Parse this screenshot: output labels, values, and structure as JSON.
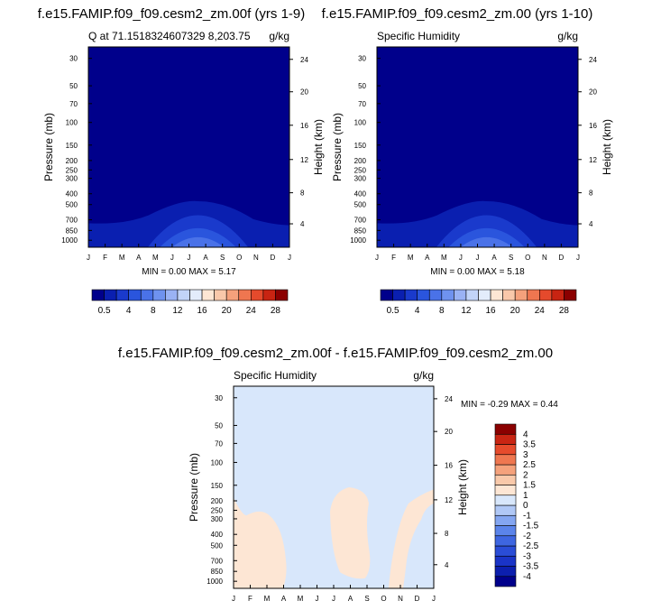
{
  "colors": {
    "abs": [
      "#00008b",
      "#0a1fb0",
      "#1a3acc",
      "#2a55dd",
      "#4a72e8",
      "#6f92ef",
      "#9ab2f4",
      "#c2d4f8",
      "#e3ecfb",
      "#fde6d4",
      "#f9c8aa",
      "#f5a17c",
      "#ef7650",
      "#e54a2c",
      "#c82412",
      "#8b0000"
    ],
    "diff": [
      "#00008b",
      "#0c1fae",
      "#1a34c7",
      "#2a4dd7",
      "#3e66e1",
      "#5b84ea",
      "#84a6f1",
      "#b0c8f6",
      "#d8e7fb",
      "#fde6d4",
      "#f9c9aa",
      "#f5a27c",
      "#ef7750",
      "#e64b2c",
      "#c92513",
      "#8b0000"
    ]
  },
  "charts": [
    {
      "title": "f.e15.FAMIP.f09_f09.cesm2_zm.00f (yrs 1-9)",
      "left_label": "Q at 71.1518324607329 8,203.75",
      "units": "g/kg",
      "minmax": "MIN =   0.00 MAX =   5.17",
      "colorbar_labels": [
        "0.5",
        "4",
        "8",
        "12",
        "16",
        "20",
        "24",
        "28"
      ]
    },
    {
      "title": "f.e15.FAMIP.f09_f09.cesm2_zm.00 (yrs 1-10)",
      "left_label": "Specific Humidity",
      "units": "g/kg",
      "minmax": "MIN =   0.00 MAX =   5.18",
      "colorbar_labels": [
        "0.5",
        "4",
        "8",
        "12",
        "16",
        "20",
        "24",
        "28"
      ]
    },
    {
      "title": "f.e15.FAMIP.f09_f09.cesm2_zm.00f - f.e15.FAMIP.f09_f09.cesm2_zm.00",
      "left_label": "Specific Humidity",
      "units": "g/kg",
      "minmax": "MIN =  -0.29 MAX =   0.44",
      "colorbar_labels": [
        "4",
        "3.5",
        "3",
        "2.5",
        "2",
        "1.5",
        "1",
        "0",
        "-1",
        "-1.5",
        "-2",
        "-2.5",
        "-3",
        "-3.5",
        "-4"
      ]
    }
  ],
  "chart_data": [
    {
      "type": "heatmap",
      "title": "f.e15.FAMIP.f09_f09.cesm2_zm.00f (yrs 1-9)",
      "xlabel": "",
      "ylabel": "Pressure (mb)",
      "y2label": "Height (km)",
      "x_ticks": [
        "J",
        "F",
        "M",
        "A",
        "M",
        "J",
        "J",
        "A",
        "S",
        "O",
        "N",
        "D",
        "J"
      ],
      "y_ticks": [
        30,
        50,
        70,
        100,
        150,
        200,
        250,
        300,
        400,
        500,
        700,
        850,
        1000
      ],
      "y2_ticks": [
        4,
        8,
        12,
        16,
        20,
        24
      ],
      "min": 0.0,
      "max": 5.17
    },
    {
      "type": "heatmap",
      "title": "f.e15.FAMIP.f09_f09.cesm2_zm.00 (yrs 1-10)",
      "xlabel": "",
      "ylabel": "Pressure (mb)",
      "y2label": "Height (km)",
      "x_ticks": [
        "J",
        "F",
        "M",
        "A",
        "M",
        "J",
        "J",
        "A",
        "S",
        "O",
        "N",
        "D",
        "J"
      ],
      "y_ticks": [
        30,
        50,
        70,
        100,
        150,
        200,
        250,
        300,
        400,
        500,
        700,
        850,
        1000
      ],
      "y2_ticks": [
        4,
        8,
        12,
        16,
        20,
        24
      ],
      "min": 0.0,
      "max": 5.18
    },
    {
      "type": "heatmap",
      "title": "f.e15.FAMIP.f09_f09.cesm2_zm.00f - f.e15.FAMIP.f09_f09.cesm2_zm.00",
      "xlabel": "",
      "ylabel": "Pressure (mb)",
      "y2label": "Height (km)",
      "x_ticks": [
        "J",
        "F",
        "M",
        "A",
        "M",
        "J",
        "J",
        "A",
        "S",
        "O",
        "N",
        "D",
        "J"
      ],
      "y_ticks": [
        30,
        50,
        70,
        100,
        150,
        200,
        250,
        300,
        400,
        500,
        700,
        850,
        1000
      ],
      "y2_ticks": [
        4,
        8,
        12,
        16,
        20,
        24
      ],
      "min": -0.29,
      "max": 0.44
    }
  ]
}
